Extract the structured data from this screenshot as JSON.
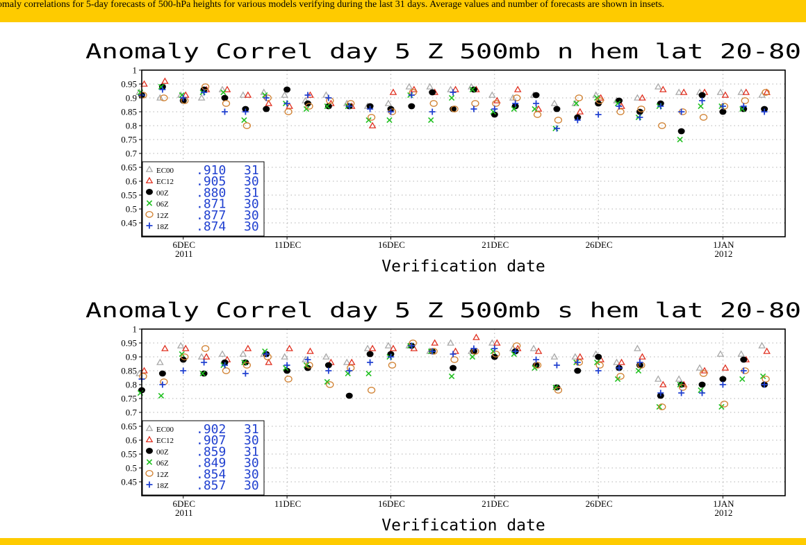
{
  "banner": {
    "text": "omaly correlations for 5-day forecasts of 500-hPa heights for various models verifying during the last 31 days. Average values and number of forecasts are shown in insets."
  },
  "colors": {
    "banner": "#fecb00",
    "EC00": "#a8a8a8",
    "EC12": "#e03020",
    "00Z": "#000000",
    "06Z": "#20c020",
    "12Z": "#d08030",
    "18Z": "#2040d0",
    "inset_text": "#2040d0"
  },
  "chart_data": [
    {
      "type": "scatter",
      "title": "Anomaly Correl   day 5   Z 500mb   n hem   lat 20-80",
      "xlabel": "Verification date",
      "ylabel": "",
      "ylim": [
        0.4,
        1.0
      ],
      "yticks": [
        "1",
        "0.95",
        "0.9",
        "0.85",
        "0.8",
        "0.75",
        "0.7",
        "0.65",
        "0.6",
        "0.55",
        "0.5",
        "0.45"
      ],
      "xlim": [
        "2011-12-04",
        "2012-01-04"
      ],
      "xticks": [
        {
          "date": "2011-12-06",
          "label": "6DEC",
          "sublabel": "2011"
        },
        {
          "date": "2011-12-11",
          "label": "11DEC",
          "sublabel": ""
        },
        {
          "date": "2011-12-16",
          "label": "16DEC",
          "sublabel": ""
        },
        {
          "date": "2011-12-21",
          "label": "21DEC",
          "sublabel": ""
        },
        {
          "date": "2011-12-26",
          "label": "26DEC",
          "sublabel": ""
        },
        {
          "date": "2012-01-01",
          "label": "1JAN",
          "sublabel": "2012"
        }
      ],
      "grid": true,
      "legend_position": "bottom-left",
      "x": [
        "2011-12-04",
        "2011-12-05",
        "2011-12-06",
        "2011-12-07",
        "2011-12-08",
        "2011-12-09",
        "2011-12-10",
        "2011-12-11",
        "2011-12-12",
        "2011-12-13",
        "2011-12-14",
        "2011-12-15",
        "2011-12-16",
        "2011-12-17",
        "2011-12-18",
        "2011-12-19",
        "2011-12-20",
        "2011-12-21",
        "2011-12-22",
        "2011-12-23",
        "2011-12-24",
        "2011-12-25",
        "2011-12-26",
        "2011-12-27",
        "2011-12-28",
        "2011-12-29",
        "2011-12-30",
        "2011-12-31",
        "2012-01-01",
        "2012-01-02",
        "2012-01-03"
      ],
      "series": [
        {
          "name": "EC00",
          "marker": "triangle",
          "avg": ".910",
          "count": "31",
          "values": [
            0.92,
            0.9,
            0.91,
            0.9,
            0.93,
            0.91,
            0.92,
            0.91,
            0.89,
            0.91,
            0.88,
            0.87,
            0.88,
            0.94,
            0.94,
            0.93,
            0.94,
            0.91,
            0.9,
            0.91,
            0.88,
            0.88,
            0.91,
            0.89,
            0.9,
            0.94,
            0.92,
            0.92,
            0.92,
            0.92,
            0.91
          ]
        },
        {
          "name": "EC12",
          "marker": "triangle",
          "avg": ".905",
          "count": "30",
          "values": [
            0.95,
            0.96,
            0.91,
            0.93,
            0.93,
            0.91,
            0.88,
            0.87,
            0.91,
            0.88,
            0.87,
            0.8,
            0.92,
            0.93,
            0.92,
            0.93,
            0.93,
            0.89,
            0.93,
            0.86,
            null,
            0.85,
            0.9,
            0.87,
            0.9,
            0.93,
            0.92,
            0.92,
            0.91,
            0.92,
            0.92
          ]
        },
        {
          "name": "00Z",
          "marker": "dot",
          "avg": ".880",
          "count": "31",
          "values": [
            0.91,
            0.94,
            0.89,
            0.93,
            0.9,
            0.86,
            0.86,
            0.93,
            0.88,
            0.87,
            0.87,
            0.87,
            0.86,
            0.87,
            0.92,
            0.86,
            0.93,
            0.84,
            0.87,
            0.91,
            0.86,
            0.83,
            0.88,
            0.89,
            0.85,
            0.88,
            0.78,
            0.91,
            0.85,
            0.86,
            0.86
          ]
        },
        {
          "name": "06Z",
          "marker": "x",
          "avg": ".871",
          "count": "30",
          "values": [
            0.92,
            0.94,
            0.91,
            0.92,
            0.92,
            0.82,
            0.91,
            0.88,
            0.86,
            0.87,
            0.87,
            0.82,
            0.82,
            0.91,
            0.82,
            0.9,
            0.93,
            0.85,
            0.86,
            0.86,
            0.79,
            0.88,
            0.9,
            0.88,
            0.83,
            0.87,
            0.75,
            0.87,
            0.87,
            0.86,
            null
          ]
        },
        {
          "name": "12Z",
          "marker": "circle",
          "avg": ".877",
          "count": "30",
          "values": [
            0.91,
            0.9,
            0.89,
            0.94,
            0.88,
            0.8,
            0.9,
            0.85,
            0.87,
            0.89,
            0.88,
            0.83,
            0.85,
            0.92,
            0.88,
            0.86,
            0.88,
            0.88,
            0.9,
            0.84,
            0.82,
            0.9,
            0.89,
            0.85,
            0.86,
            0.8,
            0.85,
            0.83,
            0.87,
            0.89,
            0.92
          ]
        },
        {
          "name": "18Z",
          "marker": "plus",
          "avg": ".874",
          "count": "30",
          "values": [
            0.91,
            0.93,
            0.9,
            0.92,
            0.85,
            0.85,
            0.9,
            0.88,
            0.91,
            0.9,
            0.87,
            0.86,
            0.85,
            0.91,
            0.85,
            0.92,
            0.86,
            0.86,
            0.88,
            0.88,
            0.79,
            0.82,
            0.84,
            0.87,
            0.83,
            0.87,
            0.85,
            0.89,
            0.87,
            0.87,
            0.85
          ]
        }
      ]
    },
    {
      "type": "scatter",
      "title": "Anomaly Correl   day 5   Z 500mb   s hem   lat 20-80",
      "xlabel": "Verification date",
      "ylabel": "",
      "ylim": [
        0.4,
        1.0
      ],
      "yticks": [
        "1",
        "0.95",
        "0.9",
        "0.85",
        "0.8",
        "0.75",
        "0.7",
        "0.65",
        "0.6",
        "0.55",
        "0.5",
        "0.45"
      ],
      "xlim": [
        "2011-12-04",
        "2012-01-04"
      ],
      "xticks": [
        {
          "date": "2011-12-06",
          "label": "6DEC",
          "sublabel": "2011"
        },
        {
          "date": "2011-12-11",
          "label": "11DEC",
          "sublabel": ""
        },
        {
          "date": "2011-12-16",
          "label": "16DEC",
          "sublabel": ""
        },
        {
          "date": "2011-12-21",
          "label": "21DEC",
          "sublabel": ""
        },
        {
          "date": "2011-12-26",
          "label": "26DEC",
          "sublabel": ""
        },
        {
          "date": "2012-01-01",
          "label": "1JAN",
          "sublabel": "2012"
        }
      ],
      "grid": true,
      "legend_position": "bottom-left",
      "x": [
        "2011-12-04",
        "2011-12-05",
        "2011-12-06",
        "2011-12-07",
        "2011-12-08",
        "2011-12-09",
        "2011-12-10",
        "2011-12-11",
        "2011-12-12",
        "2011-12-13",
        "2011-12-14",
        "2011-12-15",
        "2011-12-16",
        "2011-12-17",
        "2011-12-18",
        "2011-12-19",
        "2011-12-20",
        "2011-12-21",
        "2011-12-22",
        "2011-12-23",
        "2011-12-24",
        "2011-12-25",
        "2011-12-26",
        "2011-12-27",
        "2011-12-28",
        "2011-12-29",
        "2011-12-30",
        "2011-12-31",
        "2012-01-01",
        "2012-01-02",
        "2012-01-03"
      ],
      "series": [
        {
          "name": "EC00",
          "marker": "triangle",
          "avg": ".902",
          "count": "31",
          "values": [
            0.84,
            0.88,
            0.94,
            0.9,
            0.91,
            0.91,
            0.91,
            0.9,
            0.89,
            0.9,
            0.88,
            0.93,
            0.94,
            0.94,
            0.92,
            0.95,
            0.92,
            0.95,
            0.93,
            0.93,
            0.9,
            0.9,
            0.91,
            0.88,
            0.93,
            0.82,
            0.82,
            0.86,
            0.91,
            0.91,
            0.94
          ]
        },
        {
          "name": "EC12",
          "marker": "triangle",
          "avg": ".907",
          "count": "30",
          "values": [
            0.85,
            0.93,
            0.93,
            0.9,
            0.89,
            0.93,
            0.88,
            0.93,
            0.92,
            0.88,
            0.88,
            0.93,
            0.93,
            0.93,
            0.95,
            0.92,
            0.97,
            0.95,
            0.93,
            0.92,
            null,
            0.9,
            0.89,
            0.88,
            0.9,
            0.8,
            0.8,
            0.85,
            0.86,
            0.89,
            0.92
          ]
        },
        {
          "name": "00Z",
          "marker": "dot",
          "avg": ".859",
          "count": "31",
          "values": [
            0.78,
            0.84,
            0.89,
            0.84,
            0.88,
            0.88,
            0.91,
            0.85,
            0.86,
            0.87,
            0.76,
            0.91,
            0.91,
            0.94,
            0.92,
            0.86,
            0.92,
            0.9,
            0.92,
            0.87,
            0.79,
            0.85,
            0.9,
            0.86,
            0.87,
            0.76,
            0.8,
            0.8,
            0.82,
            0.89,
            0.8
          ]
        },
        {
          "name": "06Z",
          "marker": "x",
          "avg": ".849",
          "count": "30",
          "values": [
            0.77,
            0.76,
            0.91,
            0.84,
            0.87,
            0.88,
            0.92,
            0.86,
            0.87,
            0.81,
            0.84,
            0.84,
            0.9,
            0.94,
            0.92,
            0.83,
            0.9,
            0.92,
            0.91,
            0.86,
            0.79,
            0.88,
            0.88,
            0.82,
            0.85,
            0.72,
            0.8,
            0.78,
            0.72,
            0.82,
            0.83
          ]
        },
        {
          "name": "12Z",
          "marker": "circle",
          "avg": ".854",
          "count": "30",
          "values": [
            0.83,
            0.81,
            0.9,
            0.93,
            0.85,
            0.87,
            0.9,
            0.82,
            0.87,
            0.8,
            0.86,
            0.78,
            0.87,
            0.95,
            0.92,
            0.89,
            0.92,
            0.91,
            0.94,
            0.87,
            0.78,
            0.88,
            0.87,
            0.83,
            0.87,
            0.72,
            0.79,
            0.84,
            0.73,
            0.85,
            0.82
          ]
        },
        {
          "name": "18Z",
          "marker": "plus",
          "avg": ".857",
          "count": "30",
          "values": [
            0.82,
            0.8,
            0.85,
            0.88,
            0.87,
            0.84,
            0.91,
            0.87,
            0.89,
            0.85,
            0.85,
            0.88,
            0.9,
            0.94,
            0.92,
            0.91,
            0.93,
            0.93,
            0.92,
            0.89,
            0.87,
            0.88,
            0.85,
            0.86,
            0.88,
            0.77,
            0.77,
            0.77,
            0.8,
            0.85,
            0.8
          ]
        }
      ]
    }
  ]
}
